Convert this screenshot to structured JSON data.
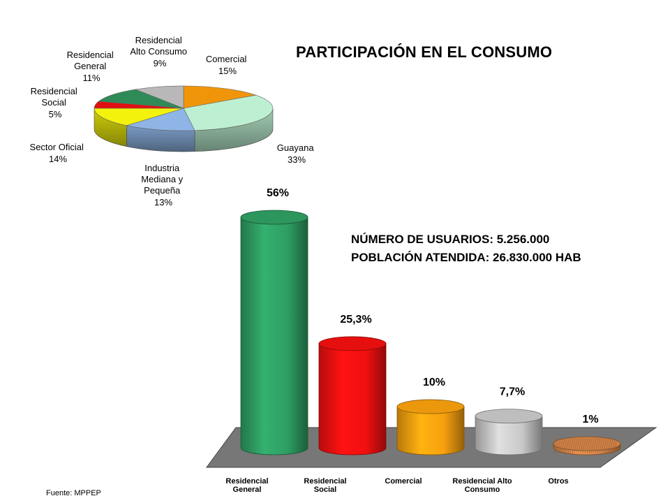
{
  "title": "PARTICIPACIÓN EN EL CONSUMO",
  "stats": {
    "users": "NÚMERO DE USUARIOS: 5.256.000",
    "population": "POBLACIÓN ATENDIDA: 26.830.000 HAB"
  },
  "source": "Fuente: MPPEP",
  "chart_data": [
    {
      "type": "pie",
      "slices": [
        {
          "name": "Comercial",
          "value": 15,
          "label": "15%",
          "color": "#F0950A"
        },
        {
          "name": "Guayana",
          "value": 33,
          "label": "33%",
          "color": "#BDF0D2"
        },
        {
          "name": "Industria Mediana y Pequeña",
          "value": 13,
          "label": "13%",
          "color": "#8FB5E6"
        },
        {
          "name": "Sector Oficial",
          "value": 14,
          "label": "14%",
          "color": "#F2F20C"
        },
        {
          "name": "Residencial Social",
          "value": 5,
          "label": "5%",
          "color": "#E01010"
        },
        {
          "name": "Residencial General",
          "value": 11,
          "label": "11%",
          "color": "#2E8B57"
        },
        {
          "name": "Residencial Alto Consumo",
          "value": 9,
          "label": "9%",
          "color": "#B8B8B8"
        }
      ]
    },
    {
      "type": "bar",
      "categories": [
        "Residencial General",
        "Residencial Social",
        "Comercial",
        "Residencial Alto Consumo",
        "Otros"
      ],
      "values": [
        56,
        25.3,
        10,
        7.7,
        1
      ],
      "value_labels": [
        "56%",
        "25,3%",
        "10%",
        "7,7%",
        "1%"
      ],
      "colors": [
        "#2E9E62",
        "#F21010",
        "#F7A00E",
        "#C8C8C8",
        "#D9884A"
      ],
      "ylim": [
        0,
        60
      ]
    }
  ]
}
